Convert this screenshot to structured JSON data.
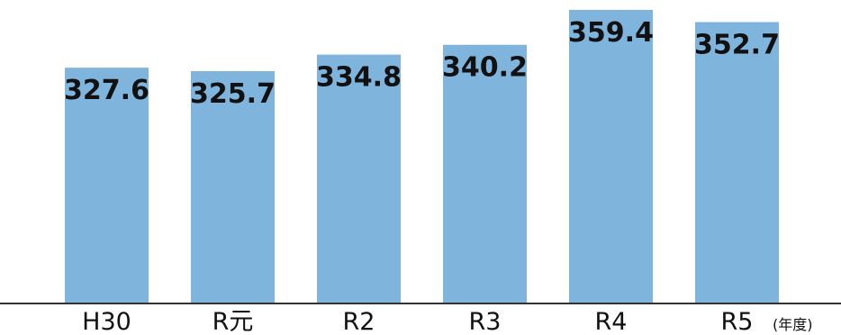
{
  "chart_data": {
    "type": "bar",
    "categories": [
      "H30",
      "R元",
      "R2",
      "R3",
      "R4",
      "R5"
    ],
    "values": [
      327.6,
      325.7,
      334.8,
      340.2,
      359.4,
      352.7
    ],
    "x_unit": "(年度)",
    "bar_color": "#7fb4dc",
    "axis_color": "#333333",
    "grid": false
  }
}
